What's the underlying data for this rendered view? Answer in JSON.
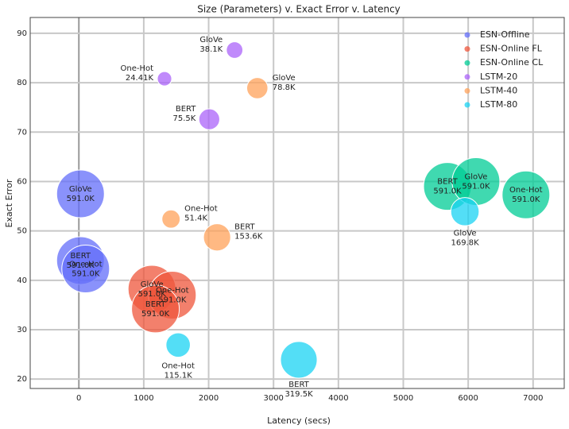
{
  "chart_data": {
    "type": "bubble",
    "title": "Size (Parameters) v. Exact Error v. Latency",
    "x_label": "Latency (secs)",
    "y_label": "Exact Error",
    "xlim": [
      -750,
      7480
    ],
    "ylim": [
      18.1,
      93.2
    ],
    "xticks": [
      0,
      1000,
      2000,
      3000,
      4000,
      5000,
      6000,
      7000
    ],
    "yticks": [
      20,
      30,
      40,
      50,
      60,
      70,
      80,
      90
    ],
    "grid": true,
    "legend": "top-right",
    "series": [
      {
        "name": "ESN-Offline",
        "color": "#636efa",
        "x": [
          25,
          25,
          105
        ],
        "values": [
          57.5,
          44,
          42.3
        ],
        "sizes": [
          591000,
          591000,
          591000
        ],
        "labels": [
          "GloVe",
          "BERT",
          "One-Hot"
        ],
        "size_labels": [
          "591.0K",
          "591.0K",
          "591.0K"
        ]
      },
      {
        "name": "ESN-Online FL",
        "color": "#ef553b",
        "x": [
          1126,
          1440,
          1180
        ],
        "values": [
          38.2,
          37,
          34.2
        ],
        "sizes": [
          591000,
          591000,
          591000
        ],
        "labels": [
          "GloVe",
          "One-Hot",
          "BERT"
        ],
        "size_labels": [
          "591.0K",
          "591.0K",
          "591.0K"
        ]
      },
      {
        "name": "ESN-Online CL",
        "color": "#00cc96",
        "x": [
          5680,
          6120,
          6890
        ],
        "values": [
          59,
          60,
          57.3
        ],
        "sizes": [
          591000,
          591000,
          591000
        ],
        "labels": [
          "BERT",
          "GloVe",
          "One-Hot"
        ],
        "size_labels": [
          "591.0K",
          "591.0K",
          "591.0K"
        ]
      },
      {
        "name": "LSTM-20",
        "color": "#ab63fa",
        "x": [
          2400,
          1320,
          2010
        ],
        "values": [
          86.6,
          80.8,
          72.6
        ],
        "sizes": [
          38100,
          24410,
          75500
        ],
        "labels": [
          "GloVe",
          "One-Hot",
          "BERT"
        ],
        "size_labels": [
          "38.1K",
          "24.41K",
          "75.5K"
        ]
      },
      {
        "name": "LSTM-40",
        "color": "#ffa15a",
        "x": [
          2750,
          1420,
          2130
        ],
        "values": [
          78.9,
          52.4,
          48.7
        ],
        "sizes": [
          78800,
          51400,
          153600
        ],
        "labels": [
          "GloVe",
          "One-Hot",
          "BERT"
        ],
        "size_labels": [
          "78.8K",
          "51.4K",
          "153.6K"
        ]
      },
      {
        "name": "LSTM-80",
        "color": "#19d3f3",
        "x": [
          5950,
          1530,
          3390
        ],
        "values": [
          53.9,
          26.9,
          23.9
        ],
        "sizes": [
          169800,
          115100,
          319500
        ],
        "labels": [
          "GloVe",
          "One-Hot",
          "BERT"
        ],
        "size_labels": [
          "169.8K",
          "115.1K",
          "319.5K"
        ]
      }
    ]
  }
}
